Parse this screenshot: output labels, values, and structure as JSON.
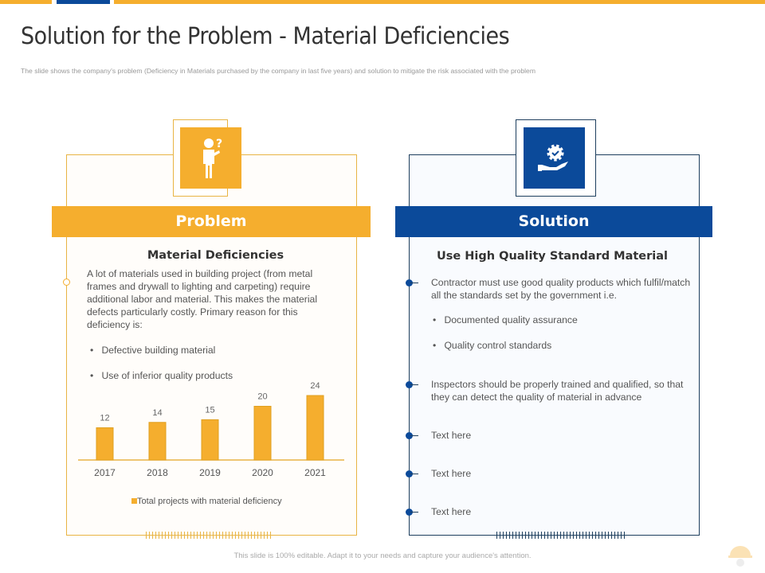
{
  "title": "Solution for the Problem - Material Deficiencies",
  "subtitle": "The slide shows the company's problem (Deficiency in Materials purchased by the company in last five years) and solution to mitigate  the risk associated with the problem",
  "colors": {
    "orange": "#f5ae2e",
    "blue": "#0b4a9a",
    "dark_blue_border": "#1e3f5e"
  },
  "problem": {
    "icon": "person-question-icon",
    "header": "Problem",
    "heading": "Material Deficiencies",
    "body": "A lot of materials used in building project (from metal frames and drywall to lighting and carpeting) require additional labor and material. This makes the material defects particularly costly. Primary reason for this deficiency is:",
    "bullets": [
      "Defective  building material",
      "Use of inferior quality products"
    ]
  },
  "chart_data": {
    "type": "bar",
    "categories": [
      "2017",
      "2018",
      "2019",
      "2020",
      "2021"
    ],
    "values": [
      12,
      14,
      15,
      20,
      24
    ],
    "series": [
      {
        "name": "Total projects with material deficiency",
        "values": [
          12,
          14,
          15,
          20,
          24
        ]
      }
    ],
    "legend": "Total projects with material deficiency",
    "legend_position": "bottom",
    "ylim": [
      0,
      24
    ],
    "grid": false
  },
  "solution": {
    "icon": "hand-gear-check-icon",
    "header": "Solution",
    "heading": "Use  High Quality Standard Material",
    "items": [
      {
        "text": "Contractor  must use good quality products which fulfil/match  all the standards  set by the government   i.e.",
        "bullets": [
          "Documented  quality assurance",
          "Quality control standards"
        ]
      },
      {
        "text": "Inspectors  should be properly trained  and qualified,  so that they can detect the quality of material in advance"
      },
      {
        "text": "Text here"
      },
      {
        "text": "Text here"
      },
      {
        "text": "Text here"
      }
    ]
  },
  "footer": "This slide is 100% editable.  Adapt it to your needs and capture your audience's attention.",
  "logo": "helmet-gear-logo"
}
